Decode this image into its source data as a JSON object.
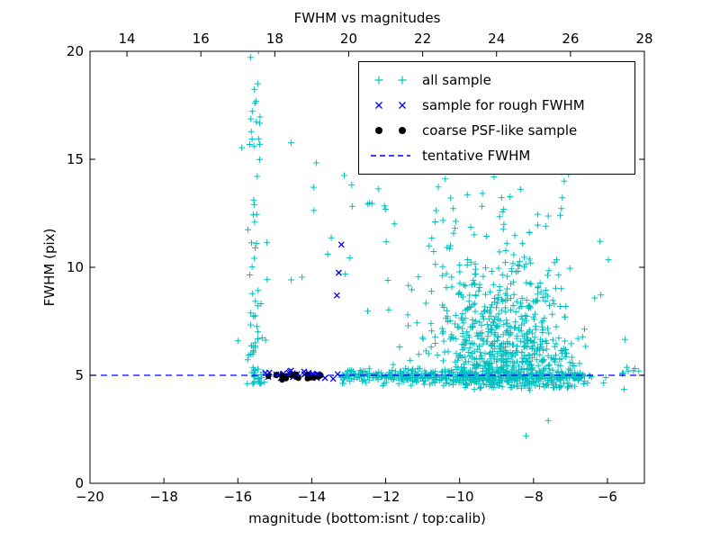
{
  "chart_data": {
    "type": "scatter",
    "title": "FWHM vs magnitudes",
    "xlabel": "magnitude (bottom:isnt / top:calib)",
    "ylabel": "FWHM (pix)",
    "xlim": [
      -20,
      -5
    ],
    "ylim": [
      0,
      20
    ],
    "grid": false,
    "legend_position": "upper right",
    "seed": 42,
    "colors": {
      "all_sample": "#00bfbf",
      "rough_fwhm": "#0000ff",
      "psf_like": "#000000",
      "tentative": "#0000ff",
      "axis": "#000000"
    },
    "axes": {
      "bottom_ticks": [
        {
          "x": -20,
          "label": "−20"
        },
        {
          "x": -18,
          "label": "−18"
        },
        {
          "x": -16,
          "label": "−16"
        },
        {
          "x": -14,
          "label": "−14"
        },
        {
          "x": -12,
          "label": "−12"
        },
        {
          "x": -10,
          "label": "−10"
        },
        {
          "x": -8,
          "label": "−8"
        },
        {
          "x": -6,
          "label": "−6"
        }
      ],
      "top_ticks": [
        {
          "x": -19,
          "label": "14"
        },
        {
          "x": -17,
          "label": "16"
        },
        {
          "x": -15,
          "label": "18"
        },
        {
          "x": -13,
          "label": "20"
        },
        {
          "x": -11,
          "label": "22"
        },
        {
          "x": -9,
          "label": "24"
        },
        {
          "x": -7,
          "label": "26"
        },
        {
          "x": -5,
          "label": "28"
        }
      ],
      "left_ticks": [
        {
          "y": 0,
          "label": "0"
        },
        {
          "y": 5,
          "label": "5"
        },
        {
          "y": 10,
          "label": "10"
        },
        {
          "y": 15,
          "label": "15"
        },
        {
          "y": 20,
          "label": "20"
        }
      ]
    },
    "legend": [
      {
        "label": "all sample",
        "marker": "plus",
        "color": "#00bfbf"
      },
      {
        "label": "sample for rough FWHM",
        "marker": "cross",
        "color": "#0000ff"
      },
      {
        "label": "coarse PSF-like sample",
        "marker": "dot",
        "color": "#000000"
      },
      {
        "label": "tentative FWHM",
        "marker": "dashed-line",
        "color": "#0000ff"
      }
    ],
    "series": [
      {
        "name": "all sample",
        "marker": "plus",
        "color": "#00bfbf",
        "clusters": [
          {
            "kind": "vband",
            "n": 85,
            "cx": -15.5,
            "sx": 0.12,
            "ymin": 4.6,
            "ymax": 20.2,
            "ypow": 2.0
          },
          {
            "kind": "uniform",
            "n": 26,
            "xmin": -14.9,
            "xmax": -11.3,
            "ymin": 9.0,
            "ymax": 16.0
          },
          {
            "kind": "blob",
            "n": 620,
            "cx": -8.75,
            "sx": 0.95,
            "ybase": 4.4,
            "sy": 2.6,
            "ymax": 15.0
          },
          {
            "kind": "blob",
            "n": 120,
            "cx": -9.4,
            "sx": 1.3,
            "ybase": 4.8,
            "sy": 3.6,
            "ymax": 15.2
          },
          {
            "kind": "uniform",
            "n": 40,
            "xmin": -10.8,
            "xmax": -6.9,
            "ymin": 9.0,
            "ymax": 14.6
          },
          {
            "kind": "hstrip",
            "n": 420,
            "xmin": -13.25,
            "xmax": -6.6,
            "ybase": 4.95,
            "sy": 0.16
          },
          {
            "kind": "hstrip",
            "n": 10,
            "xmin": -6.6,
            "xmax": -5.15,
            "ybase": 5.0,
            "sy": 0.18
          }
        ],
        "points": [
          [
            -5.15,
            5.2
          ],
          [
            -5.55,
            4.35
          ],
          [
            -6.2,
            11.2
          ],
          [
            -6.5,
            14.6
          ],
          [
            -7.05,
            14.3
          ],
          [
            -8.2,
            2.2
          ],
          [
            -7.6,
            2.9
          ],
          [
            -12.5,
            18.4
          ],
          [
            -9.6,
            4.35
          ],
          [
            -8.1,
            4.3
          ],
          [
            -7.3,
            4.45
          ],
          [
            -16.0,
            6.6
          ]
        ]
      },
      {
        "name": "sample for rough FWHM",
        "marker": "cross",
        "color": "#0000ff",
        "clusters": [
          {
            "kind": "hstrip",
            "n": 30,
            "xmin": -15.35,
            "xmax": -13.15,
            "ybase": 5.02,
            "sy": 0.09
          }
        ],
        "points": [
          [
            -13.2,
            11.05
          ],
          [
            -13.27,
            9.75
          ],
          [
            -13.32,
            8.7
          ]
        ]
      },
      {
        "name": "coarse PSF-like sample",
        "marker": "dot",
        "color": "#000000",
        "clusters": [
          {
            "kind": "hstrip",
            "n": 20,
            "xmin": -15.2,
            "xmax": -13.75,
            "ybase": 4.93,
            "sy": 0.06
          }
        ],
        "points": []
      }
    ],
    "reference_line": {
      "name": "tentative FWHM",
      "y": 5,
      "style": "dashed",
      "color": "#0000ff"
    }
  }
}
